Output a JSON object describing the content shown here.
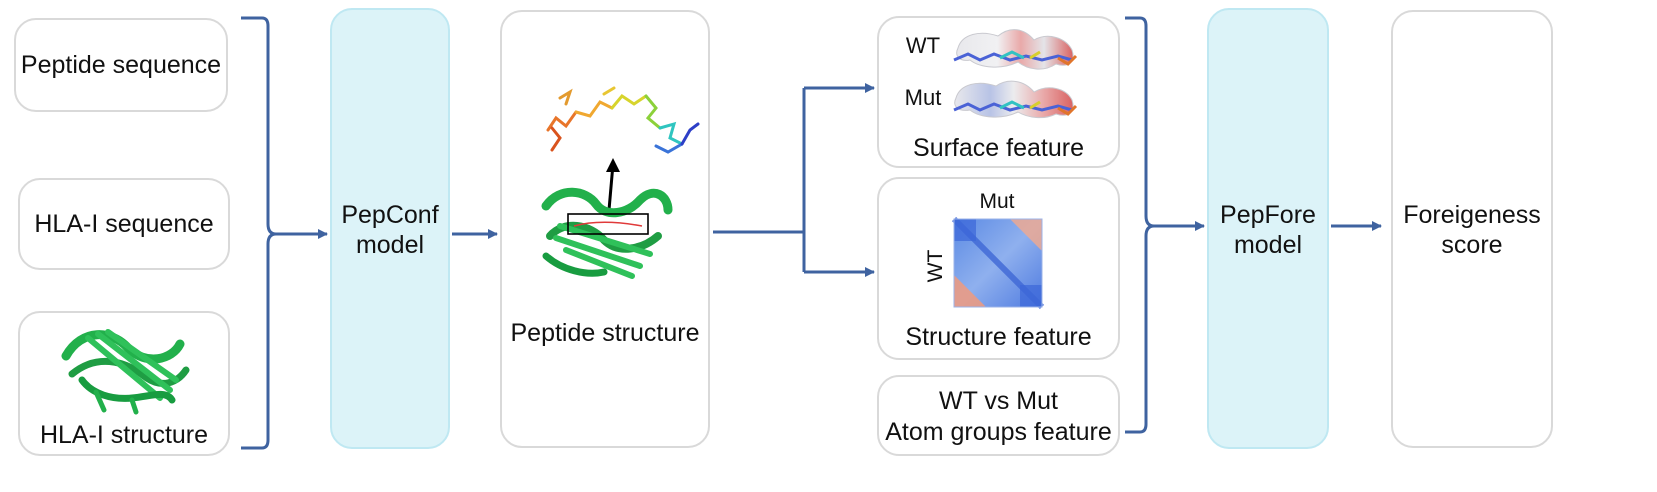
{
  "inputs": {
    "peptide_sequence": "Peptide sequence",
    "hla_sequence": "HLA-I sequence",
    "hla_structure": "HLA-I structure"
  },
  "pepconf": {
    "line1": "PepConf",
    "line2": "model"
  },
  "peptide_structure": "Peptide structure",
  "features": {
    "surface": {
      "wt_label": "WT",
      "mut_label": "Mut",
      "title": "Surface feature"
    },
    "structure": {
      "mut_label": "Mut",
      "wt_label": "WT",
      "title": "Structure feature"
    },
    "atom": {
      "line1": "WT vs Mut",
      "line2": "Atom groups feature"
    }
  },
  "pepfore": {
    "line1": "PepFore",
    "line2": "model"
  },
  "output": {
    "line1": "Foreigeness",
    "line2": "score"
  },
  "colors": {
    "arrow": "#3f63a0",
    "model_fill": "#dcf3f8",
    "box_border": "#d9d9d9",
    "protein_green": "#22b04b"
  }
}
